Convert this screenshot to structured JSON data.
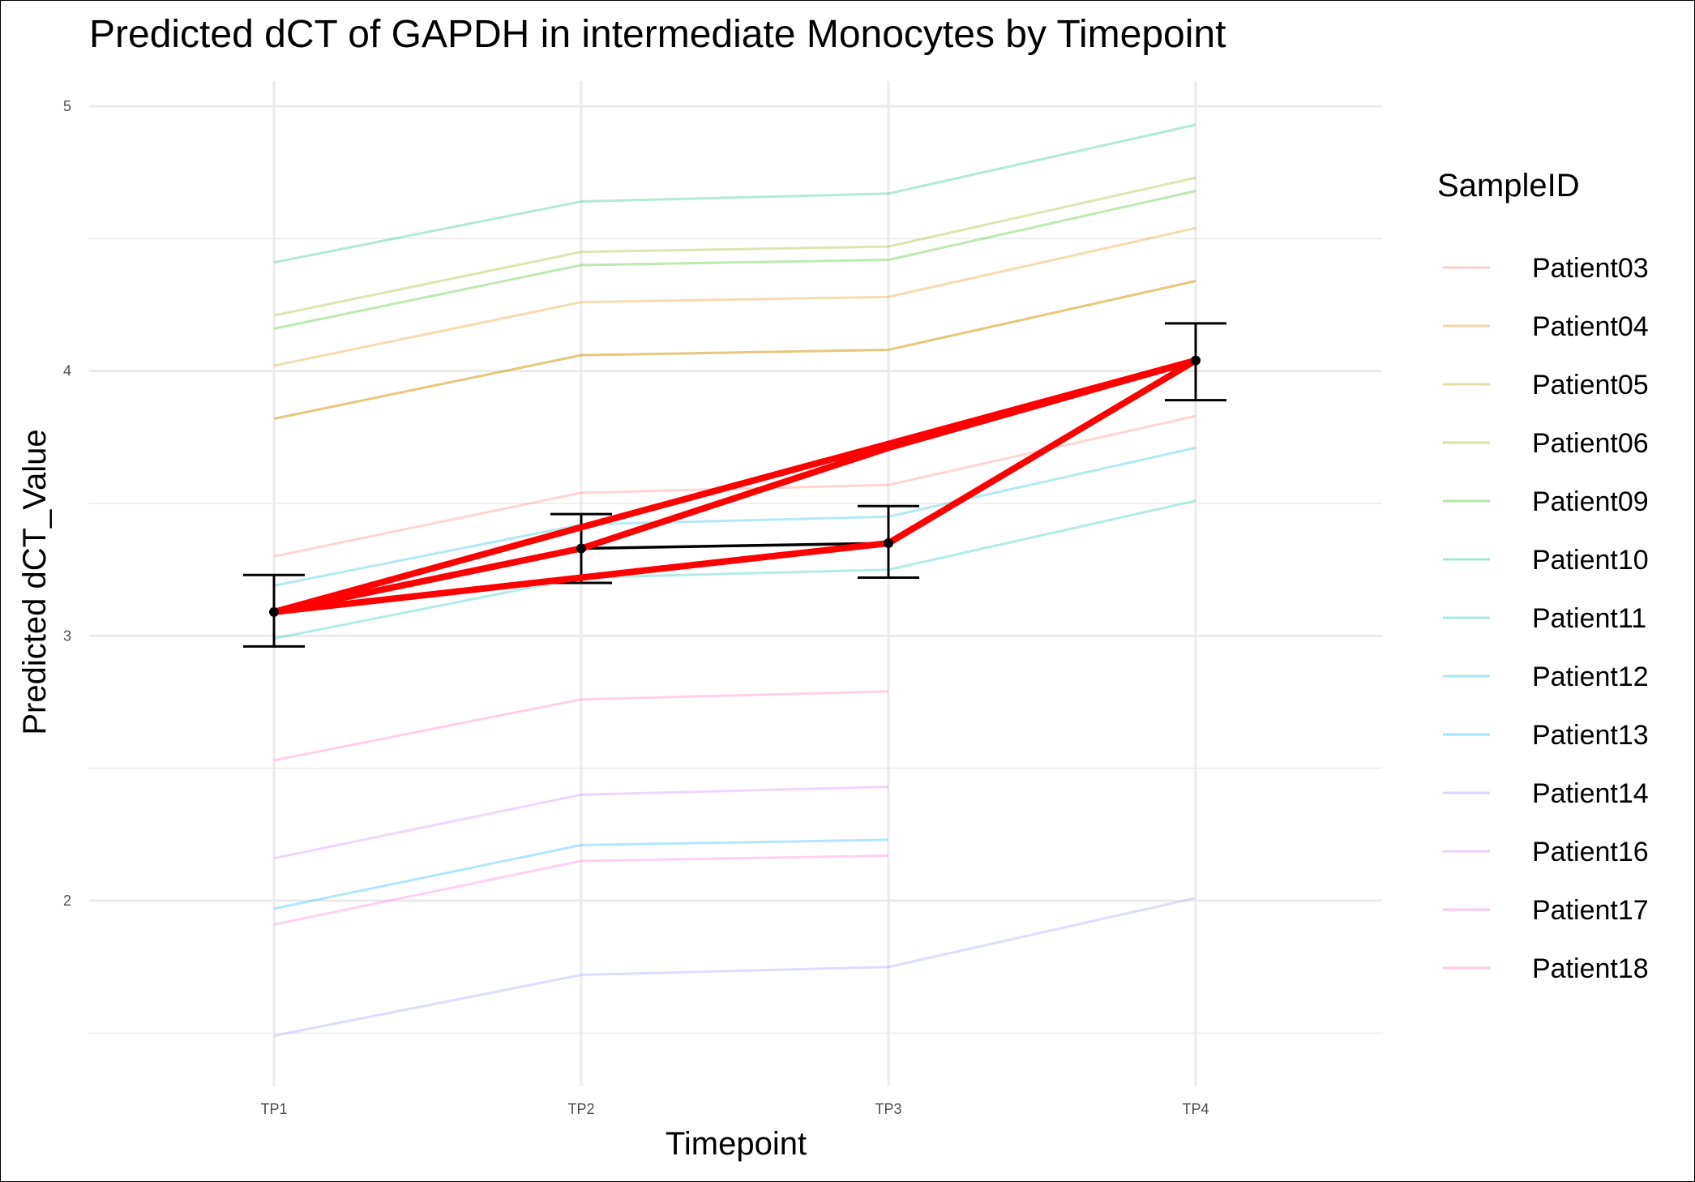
{
  "chart_data": {
    "type": "line",
    "title": "Predicted dCT of  GAPDH in  intermediate  Monocytes by Timepoint",
    "xlabel": "Timepoint",
    "ylabel": "Predicted dCT_Value",
    "categories": [
      "TP1",
      "TP2",
      "TP3",
      "TP4"
    ],
    "ylim": [
      1.45,
      5.1
    ],
    "yticks": [
      2,
      3,
      4,
      5
    ],
    "grid": true,
    "legend": {
      "title": "SampleID",
      "position": "right"
    },
    "series": [
      {
        "name": "Patient03",
        "color": "#F8766D",
        "values": [
          3.3,
          3.54,
          3.57,
          3.83
        ]
      },
      {
        "name": "Patient04",
        "color": "#E18A00",
        "values": [
          4.02,
          4.26,
          4.28,
          4.54
        ]
      },
      {
        "name": "Patient04",
        "color": "#E18A00",
        "values": [
          3.82,
          4.06,
          4.08,
          4.34
        ]
      },
      {
        "name": "Patient05",
        "color": "#BE9C00",
        "values": [
          3.82,
          4.06,
          4.08,
          4.34
        ]
      },
      {
        "name": "Patient06",
        "color": "#8CAB00",
        "values": [
          4.21,
          4.45,
          4.47,
          4.73
        ]
      },
      {
        "name": "Patient09",
        "color": "#24B700",
        "values": [
          4.16,
          4.4,
          4.42,
          4.68
        ]
      },
      {
        "name": "Patient10",
        "color": "#00BE70",
        "values": [
          4.41,
          4.64,
          4.67,
          4.93
        ]
      },
      {
        "name": "Patient11",
        "color": "#00C1AB",
        "values": [
          2.99,
          3.22,
          3.25,
          3.51
        ]
      },
      {
        "name": "Patient12",
        "color": "#00BBDA",
        "values": [
          3.19,
          3.42,
          3.45,
          3.71
        ]
      },
      {
        "name": "Patient13",
        "color": "#00ACFC",
        "values": [
          1.97,
          2.21,
          2.23,
          null
        ]
      },
      {
        "name": "Patient14",
        "color": "#8B93FF",
        "values": [
          1.49,
          1.72,
          1.75,
          2.01
        ]
      },
      {
        "name": "Patient16",
        "color": "#D575FE",
        "values": [
          2.16,
          2.4,
          2.43,
          null
        ]
      },
      {
        "name": "Patient17",
        "color": "#F962DD",
        "values": [
          1.91,
          2.15,
          2.17,
          null
        ]
      },
      {
        "name": "Patient18",
        "color": "#FF65AC",
        "values": [
          2.53,
          2.76,
          2.79,
          null
        ]
      }
    ],
    "mean": {
      "values": [
        3.09,
        3.33,
        3.35,
        4.04
      ],
      "error": [
        [
          2.96,
          3.23
        ],
        [
          3.2,
          3.46
        ],
        [
          3.22,
          3.49
        ],
        [
          3.89,
          4.18
        ]
      ],
      "color": "#000000"
    },
    "red_lines": [
      {
        "values": [
          3.09,
          3.41,
          null,
          4.04
        ],
        "color": "#FF0000"
      },
      {
        "values": [
          3.09,
          null,
          3.35,
          4.04
        ],
        "color": "#FF0000"
      },
      {
        "values": [
          3.09,
          3.33,
          3.71,
          4.04
        ],
        "color": "#FF0000"
      }
    ]
  }
}
